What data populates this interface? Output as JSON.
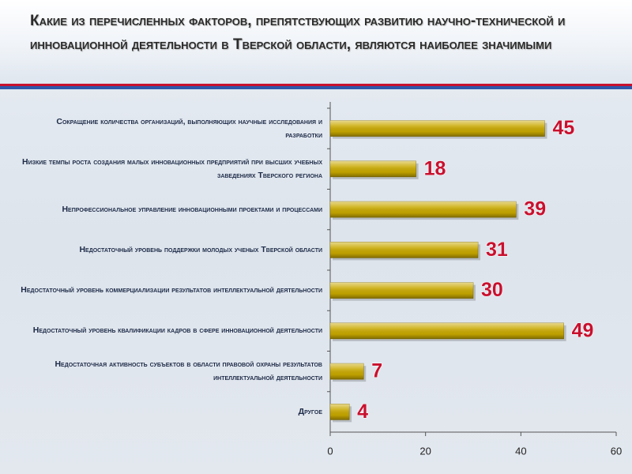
{
  "chart_data": {
    "type": "bar",
    "orientation": "horizontal",
    "title": "Какие из перечисленных факторов, препятствующих развитию научно-технической и инновационной деятельности в Тверской области, являются наиболее значимыми",
    "categories": [
      "Сокращение количества организаций, выполняющих научные исследования и разработки",
      "Низкие темпы роста создания малых инновационных предприятий при высших учебных заведениях Тверского региона",
      "Непрофессиональное управление инновационными проектами и процессами",
      "Недостаточный уровень поддержки молодых ученых Тверской области",
      "Недостаточный уровень коммерциализации результатов интеллектуальной деятельности",
      "Недостаточный уровень квалификации кадров в сфере инновационной деятельности",
      "Недостаточная активность субъектов в области правовой охраны результатов интеллектуальной деятельности",
      "Другое"
    ],
    "values": [
      45,
      18,
      39,
      31,
      30,
      49,
      7,
      4
    ],
    "color": "#c9a900",
    "xlim": [
      0,
      60
    ],
    "xticks": [
      0,
      20,
      40,
      60
    ]
  }
}
